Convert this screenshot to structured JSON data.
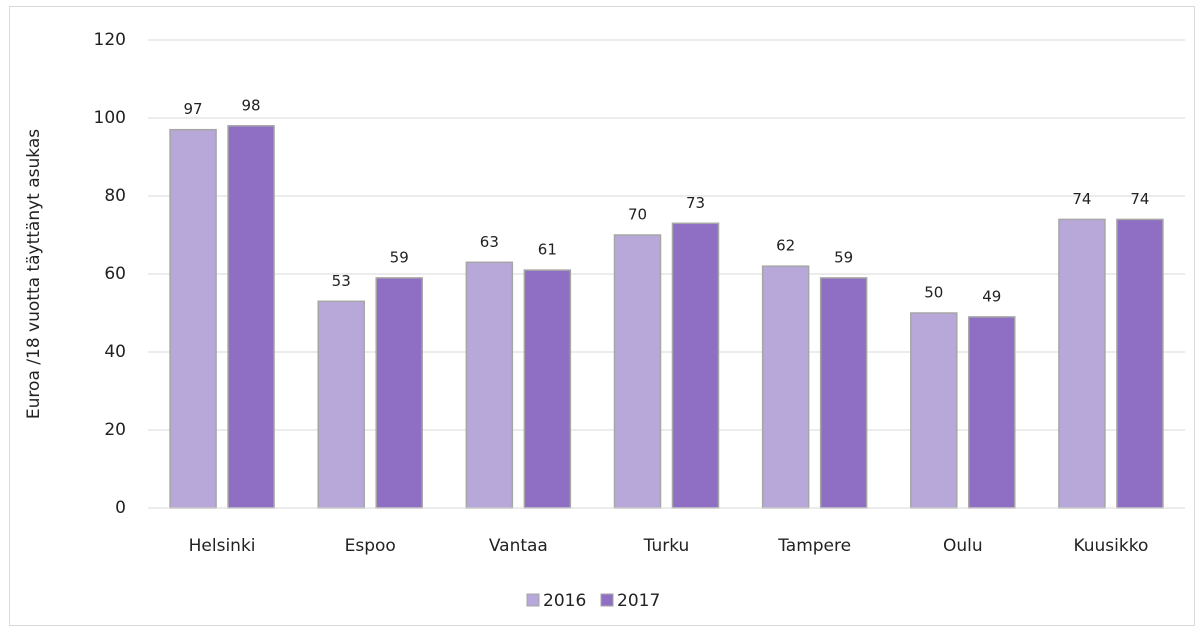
{
  "chart_data": {
    "type": "bar",
    "y_label": "Euroa /18 vuotta täyttänyt asukas",
    "categories": [
      "Helsinki",
      "Espoo",
      "Vantaa",
      "Turku",
      "Tampere",
      "Oulu",
      "Kuusikko"
    ],
    "series": [
      {
        "name": "2016",
        "color": "#b8a8da",
        "values": [
          97,
          53,
          63,
          70,
          62,
          50,
          74
        ]
      },
      {
        "name": "2017",
        "color": "#8e6fc3",
        "values": [
          98,
          59,
          61,
          73,
          59,
          49,
          74
        ]
      }
    ],
    "ylim": [
      0,
      120
    ],
    "yticks": [
      0,
      20,
      40,
      60,
      80,
      100,
      120
    ],
    "grid": true,
    "legend": "bottom"
  }
}
